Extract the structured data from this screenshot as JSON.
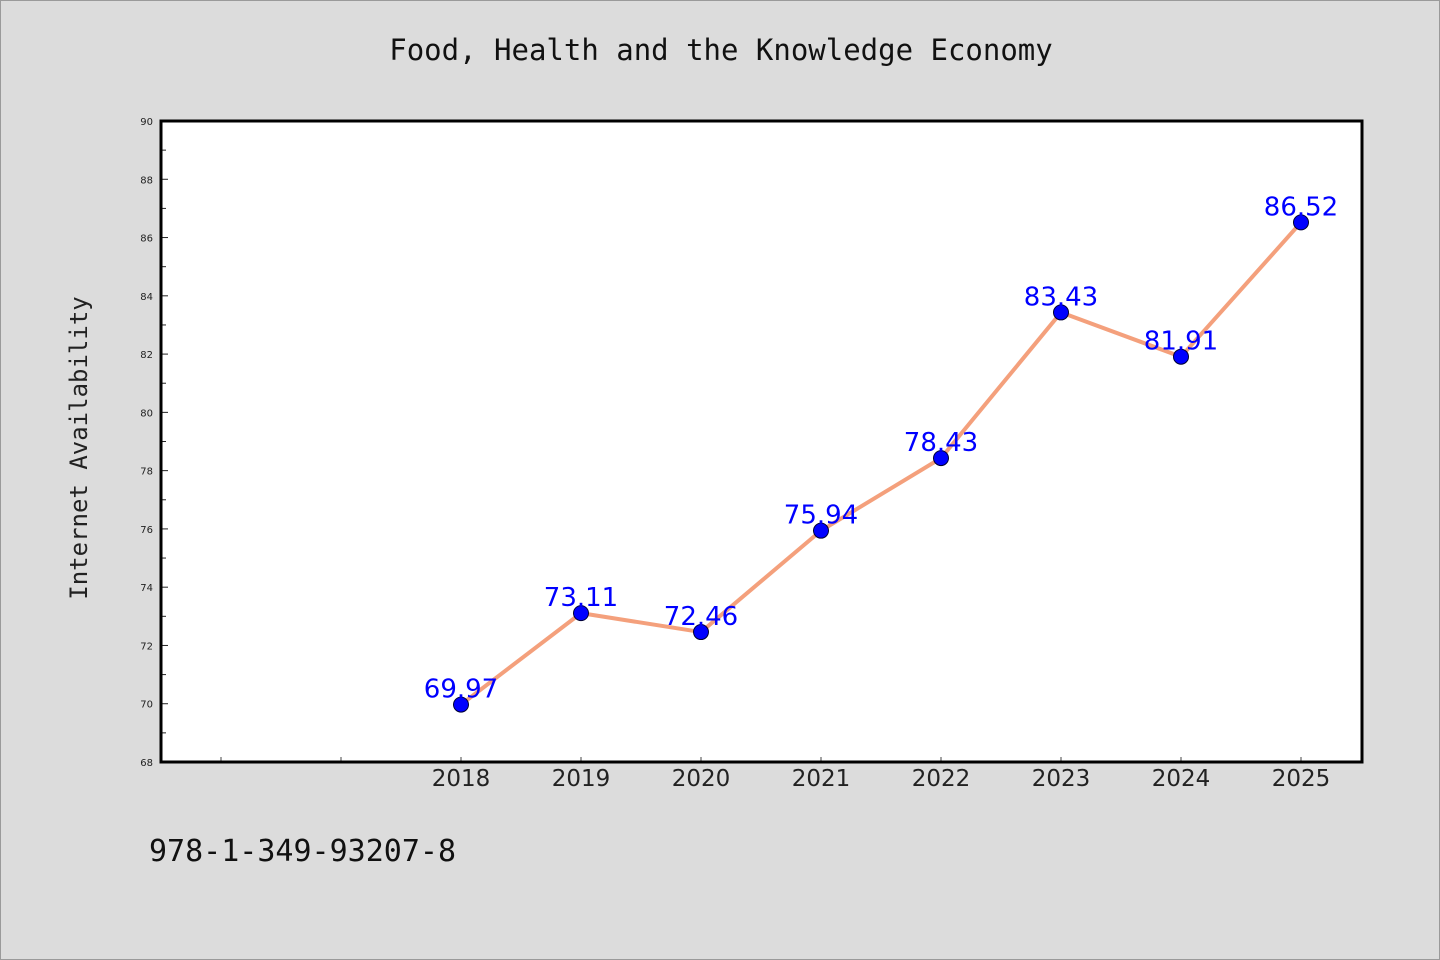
{
  "chart_data": {
    "type": "line",
    "title": "Food, Health and the Knowledge Economy",
    "xlabel": "",
    "ylabel": "Internet Availability",
    "categories": [
      "2018",
      "2019",
      "2020",
      "2021",
      "2022",
      "2023",
      "2024",
      "2025"
    ],
    "series": [
      {
        "values": [
          69.97,
          73.11,
          72.46,
          75.94,
          78.43,
          83.43,
          81.91,
          86.52
        ],
        "labels": [
          "69.97",
          "73.11",
          "72.46",
          "75.94",
          "78.43",
          "83.43",
          "81.91",
          "86.52"
        ],
        "line_color": "#f4a07c",
        "marker_color": "#0000ff"
      }
    ],
    "ylim": [
      68,
      90
    ],
    "yticks": [
      "68",
      "70",
      "72",
      "74",
      "76",
      "78",
      "80",
      "82",
      "84",
      "86",
      "88",
      "90"
    ],
    "x_slots_before_data": 2,
    "grid": false,
    "label_color": "#0000ff"
  },
  "footer": {
    "isbn": "978-1-349-93207-8"
  }
}
